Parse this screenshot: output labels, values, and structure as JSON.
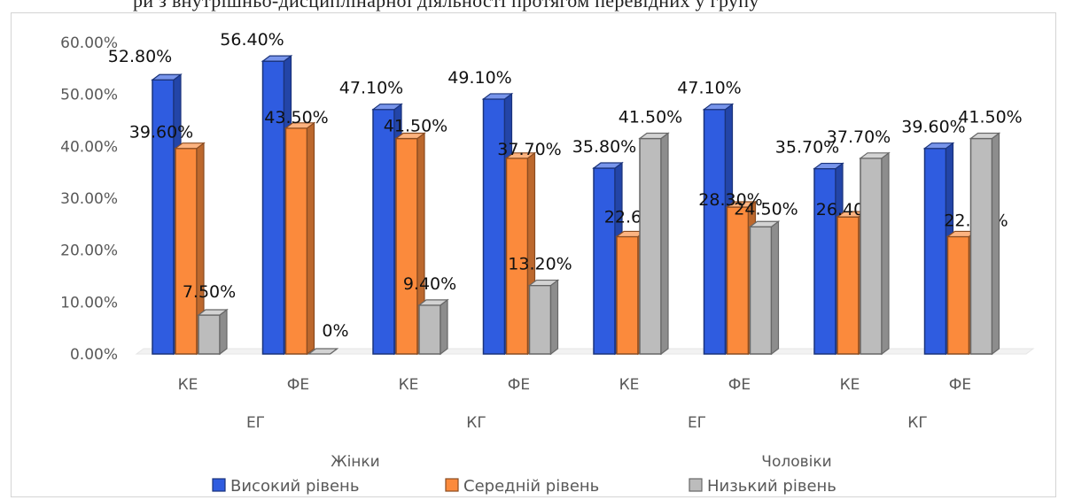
{
  "top_text": "ри з внутрішньо-дисциплінарної діяльності протягом перевідних у групу",
  "chart_data": {
    "type": "bar",
    "categories": [
      "КЕ",
      "ФЕ",
      "КЕ",
      "ФЕ",
      "КЕ",
      "ФЕ",
      "КЕ",
      "ФЕ"
    ],
    "groups": [
      "ЕГ",
      "КГ",
      "ЕГ",
      "КГ"
    ],
    "supergroups": [
      "Жінки",
      "Чоловіки"
    ],
    "y_ticks": [
      "0.00%",
      "10.00%",
      "20.00%",
      "30.00%",
      "40.00%",
      "50.00%",
      "60.00%"
    ],
    "ylim": [
      0,
      60
    ],
    "series": [
      {
        "name": "Високий рівень",
        "color": "#2f5ce0",
        "values": [
          52.8,
          56.4,
          47.1,
          49.1,
          35.8,
          47.1,
          35.7,
          39.6
        ],
        "labels": [
          "52.80%",
          "56.40%",
          "47.10%",
          "49.10%",
          "35.80%",
          "47.10%",
          "35.70%",
          "39.60%"
        ]
      },
      {
        "name": "Середній рівень",
        "color": "#fb8a3c",
        "values": [
          39.6,
          43.5,
          41.5,
          37.7,
          22.6,
          28.3,
          26.4,
          22.6
        ],
        "labels": [
          "39.60%",
          "43.50%",
          "41.50%",
          "37.70%",
          "22.60%",
          "28.30%",
          "26.40%",
          "22.60%"
        ]
      },
      {
        "name": "Низький рівень",
        "color": "#bcbcbc",
        "values": [
          7.5,
          0,
          9.4,
          13.2,
          41.5,
          24.5,
          37.7,
          41.5
        ],
        "labels": [
          "7.50%",
          "0%",
          "9.40%",
          "13.20%",
          "41.50%",
          "24.50%",
          "37.70%",
          "41.50%"
        ]
      }
    ],
    "legend_position": "bottom",
    "grid": false
  }
}
